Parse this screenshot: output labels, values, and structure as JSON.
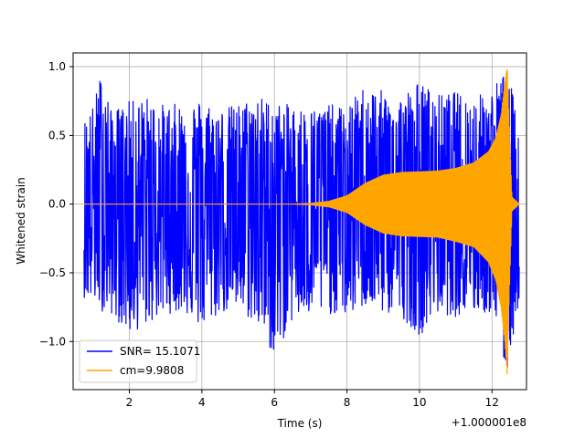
{
  "chart_data": {
    "type": "line",
    "title": "",
    "xlabel": "Time (s)",
    "ylabel": "Whitened strain",
    "x_offset_label": "+1.000001e8",
    "xlim": [
      0.45,
      12.95
    ],
    "ylim": [
      -1.35,
      1.1
    ],
    "xticks": [
      2,
      4,
      6,
      8,
      10,
      12
    ],
    "yticks": [
      -1.0,
      -0.5,
      0.0,
      0.5,
      1.0
    ],
    "xtick_labels": [
      "2",
      "4",
      "6",
      "8",
      "10",
      "12"
    ],
    "ytick_labels": [
      "−1.0",
      "−0.5",
      "0.0",
      "0.5",
      "1.0"
    ],
    "grid": true,
    "legend_position": "lower-left",
    "series": [
      {
        "name": "SNR= 15.1071",
        "color": "#0000ff",
        "kind": "noise",
        "x_range": [
          0.75,
          12.75
        ],
        "envelope_upper": [
          [
            0.75,
            0.62
          ],
          [
            1.0,
            0.72
          ],
          [
            1.25,
            1.0
          ],
          [
            1.5,
            0.68
          ],
          [
            2.0,
            0.75
          ],
          [
            2.5,
            0.78
          ],
          [
            3.0,
            0.72
          ],
          [
            3.5,
            0.74
          ],
          [
            4.0,
            0.77
          ],
          [
            4.5,
            0.7
          ],
          [
            5.0,
            0.73
          ],
          [
            5.5,
            0.8
          ],
          [
            6.0,
            0.74
          ],
          [
            6.5,
            0.72
          ],
          [
            7.0,
            0.7
          ],
          [
            7.5,
            0.73
          ],
          [
            8.0,
            0.7
          ],
          [
            8.5,
            0.88
          ],
          [
            9.0,
            0.82
          ],
          [
            9.5,
            0.8
          ],
          [
            10.0,
            0.9
          ],
          [
            10.5,
            0.8
          ],
          [
            11.0,
            0.82
          ],
          [
            11.5,
            0.78
          ],
          [
            12.0,
            0.85
          ],
          [
            12.4,
            1.0
          ],
          [
            12.75,
            0.6
          ]
        ],
        "envelope_lower": [
          [
            0.75,
            -0.68
          ],
          [
            1.0,
            -0.72
          ],
          [
            1.25,
            -0.78
          ],
          [
            1.5,
            -0.8
          ],
          [
            2.0,
            -0.95
          ],
          [
            2.5,
            -0.88
          ],
          [
            3.0,
            -0.8
          ],
          [
            3.5,
            -0.78
          ],
          [
            4.0,
            -0.92
          ],
          [
            4.5,
            -0.8
          ],
          [
            5.0,
            -0.78
          ],
          [
            5.5,
            -0.88
          ],
          [
            6.0,
            -1.12
          ],
          [
            6.5,
            -0.85
          ],
          [
            7.0,
            -0.82
          ],
          [
            7.5,
            -0.8
          ],
          [
            8.0,
            -0.82
          ],
          [
            8.5,
            -0.75
          ],
          [
            9.0,
            -0.8
          ],
          [
            9.5,
            -0.82
          ],
          [
            10.0,
            -0.96
          ],
          [
            10.5,
            -0.8
          ],
          [
            11.0,
            -0.82
          ],
          [
            11.5,
            -0.8
          ],
          [
            12.0,
            -0.8
          ],
          [
            12.4,
            -1.27
          ],
          [
            12.75,
            -0.7
          ]
        ]
      },
      {
        "name": "cm=9.9808",
        "color": "#ffa500",
        "kind": "chirp",
        "x_range": [
          0.75,
          12.75
        ],
        "envelope_upper": [
          [
            0.75,
            0.0
          ],
          [
            6.5,
            0.0
          ],
          [
            7.0,
            0.005
          ],
          [
            7.5,
            0.02
          ],
          [
            8.0,
            0.06
          ],
          [
            8.5,
            0.15
          ],
          [
            9.0,
            0.21
          ],
          [
            9.5,
            0.23
          ],
          [
            10.0,
            0.235
          ],
          [
            10.5,
            0.24
          ],
          [
            11.0,
            0.26
          ],
          [
            11.5,
            0.3
          ],
          [
            11.9,
            0.38
          ],
          [
            12.1,
            0.48
          ],
          [
            12.25,
            0.65
          ],
          [
            12.35,
            0.88
          ],
          [
            12.42,
            1.0
          ],
          [
            12.47,
            0.6
          ],
          [
            12.55,
            0.05
          ],
          [
            12.75,
            0.0
          ]
        ],
        "envelope_lower": [
          [
            0.75,
            0.0
          ],
          [
            6.5,
            0.0
          ],
          [
            7.0,
            -0.005
          ],
          [
            7.5,
            -0.02
          ],
          [
            8.0,
            -0.06
          ],
          [
            8.5,
            -0.15
          ],
          [
            9.0,
            -0.21
          ],
          [
            9.5,
            -0.23
          ],
          [
            10.0,
            -0.235
          ],
          [
            10.5,
            -0.24
          ],
          [
            11.0,
            -0.27
          ],
          [
            11.5,
            -0.31
          ],
          [
            11.9,
            -0.42
          ],
          [
            12.1,
            -0.55
          ],
          [
            12.25,
            -0.75
          ],
          [
            12.35,
            -1.0
          ],
          [
            12.42,
            -1.25
          ],
          [
            12.47,
            -0.7
          ],
          [
            12.55,
            -0.05
          ],
          [
            12.75,
            0.0
          ]
        ]
      }
    ]
  }
}
